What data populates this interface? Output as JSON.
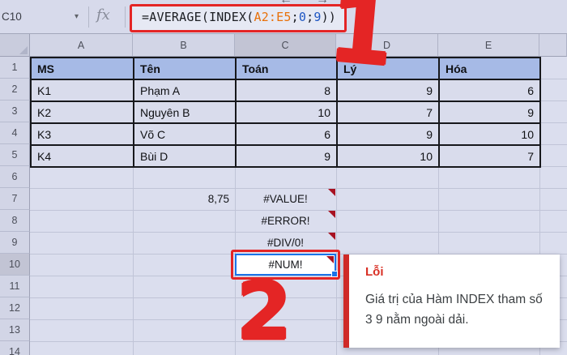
{
  "icons": {
    "name_box_dropdown": "▾",
    "left_arrow": "←",
    "right_arrow": "→"
  },
  "formula_bar": {
    "cell_ref": "C10",
    "fx_label": "fx",
    "formula_parts": [
      {
        "text": "=AVERAGE(INDEX(",
        "color": "black"
      },
      {
        "text": "A2:E5",
        "color": "orange"
      },
      {
        "text": ";",
        "color": "black"
      },
      {
        "text": "0",
        "color": "blue"
      },
      {
        "text": ";",
        "color": "black"
      },
      {
        "text": "9",
        "color": "blue"
      },
      {
        "text": "))",
        "color": "black"
      }
    ]
  },
  "grid": {
    "column_headers": [
      "A",
      "B",
      "C",
      "D",
      "E"
    ],
    "selected_column": "C",
    "row_numbers": [
      "1",
      "2",
      "3",
      "4",
      "5",
      "6",
      "7",
      "8",
      "9",
      "10",
      "11",
      "12",
      "13",
      "14"
    ],
    "selected_row": "10",
    "table": {
      "headers": [
        "MS",
        "Tên",
        "Toán",
        "Lý",
        "Hóa"
      ],
      "column_align": [
        "left",
        "left",
        "right",
        "right",
        "right"
      ],
      "rows": [
        [
          "K1",
          "Phạm A",
          "8",
          "9",
          "6"
        ],
        [
          "K2",
          "Nguyên B",
          "10",
          "7",
          "9"
        ],
        [
          "K3",
          "Võ C",
          "6",
          "9",
          "10"
        ],
        [
          "K4",
          "Bùi D",
          "9",
          "10",
          "7"
        ]
      ]
    },
    "other_cells": [
      {
        "cell": "B7",
        "text": "8,75",
        "align": "right",
        "error_marker": false,
        "selected": false
      },
      {
        "cell": "C7",
        "text": "#VALUE!",
        "align": "center",
        "error_marker": true,
        "selected": false
      },
      {
        "cell": "C8",
        "text": "#ERROR!",
        "align": "center",
        "error_marker": true,
        "selected": false
      },
      {
        "cell": "C9",
        "text": "#DIV/0!",
        "align": "center",
        "error_marker": true,
        "selected": false
      },
      {
        "cell": "C10",
        "text": "#NUM!",
        "align": "center",
        "error_marker": true,
        "selected": true
      }
    ]
  },
  "tooltip": {
    "title": "Lỗi",
    "body": "Giá trị của Hàm INDEX tham số 3 9 nằm ngoài dải."
  },
  "annotations": {
    "step1": "1",
    "step2": "2"
  },
  "colors": {
    "annotation_red": "#e42525",
    "selection_blue": "#1a73e8",
    "table_header_fill": "#a6bae6",
    "cell_fill": "#dbdeee",
    "error_marker_red": "#a81222",
    "formula_range_orange": "#e8710a",
    "formula_number_blue": "#1f57c3",
    "tooltip_title_red": "#d93025"
  }
}
